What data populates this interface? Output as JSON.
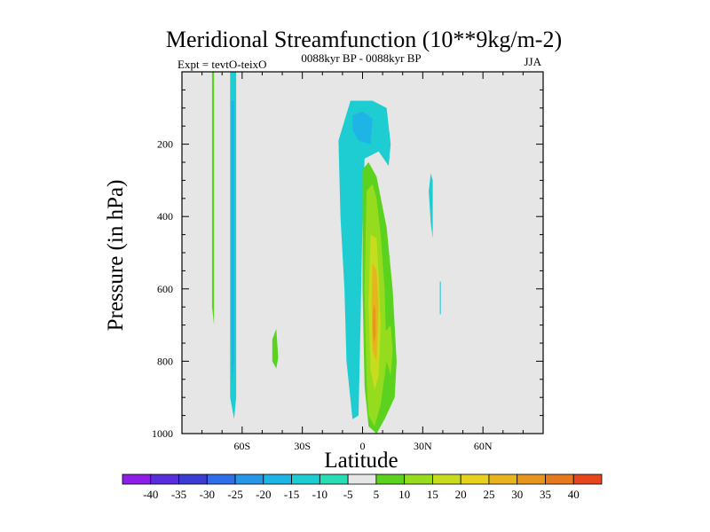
{
  "chart_data": {
    "type": "heatmap",
    "title": "Meridional Streamfunction (10**9kg/m-2)",
    "subtitle_left": "Expt = tevtO-teixO",
    "subtitle_center": "0088kyr BP - 0088kyr BP",
    "subtitle_right": "JJA",
    "xlabel": "Latitude",
    "ylabel": "Pressure (in hPa)",
    "xlim": [
      -90,
      90
    ],
    "ylim": [
      1000,
      0
    ],
    "x_ticks": [
      -60,
      -30,
      0,
      30,
      60
    ],
    "x_tick_labels": [
      "60S",
      "30S",
      "0",
      "30N",
      "60N"
    ],
    "y_ticks": [
      200,
      400,
      600,
      800,
      1000
    ],
    "y_tick_labels": [
      "200",
      "400",
      "600",
      "800",
      "1000"
    ],
    "background_color": "#e6e6e6",
    "colorbar": {
      "labels": [
        "-40",
        "-35",
        "-30",
        "-25",
        "-20",
        "-15",
        "-10",
        "-5",
        "5",
        "10",
        "15",
        "20",
        "25",
        "30",
        "35",
        "40"
      ],
      "colors": [
        "#8c1ee6",
        "#5a2ddc",
        "#3c3cd2",
        "#2f6ee6",
        "#2896e6",
        "#1eb4e6",
        "#1ecdd2",
        "#28dcb4",
        "#e6e6e6",
        "#5ad21e",
        "#96dc1e",
        "#c8dc1e",
        "#e6d21e",
        "#e6b41e",
        "#e6961e",
        "#e6781e",
        "#e6461e"
      ]
    },
    "contours": [
      {
        "value": -10,
        "color": "#1ecdd2",
        "points": [
          [
            -66,
            0
          ],
          [
            -63,
            0
          ],
          [
            -63,
            300
          ],
          [
            -63,
            700
          ],
          [
            -63,
            900
          ],
          [
            -64,
            960
          ],
          [
            -66,
            900
          ],
          [
            -66,
            300
          ]
        ]
      },
      {
        "value": -15,
        "color": "#1eb4e6",
        "points": [
          [
            -65.5,
            80
          ],
          [
            -64,
            80
          ],
          [
            -64,
            400
          ],
          [
            -64,
            800
          ],
          [
            -65,
            860
          ],
          [
            -65.5,
            700
          ]
        ]
      },
      {
        "value": -10,
        "color": "#1ecdd2",
        "points": [
          [
            -12,
            190
          ],
          [
            -6,
            80
          ],
          [
            5,
            80
          ],
          [
            12,
            100
          ],
          [
            14,
            200
          ],
          [
            13,
            260
          ],
          [
            8,
            220
          ],
          [
            1,
            240
          ],
          [
            0,
            400
          ],
          [
            -1,
            700
          ],
          [
            -2,
            950
          ],
          [
            -5,
            960
          ],
          [
            -8,
            800
          ],
          [
            -9,
            600
          ],
          [
            -11,
            400
          ]
        ]
      },
      {
        "value": -15,
        "color": "#1eb4e6",
        "points": [
          [
            -5,
            120
          ],
          [
            0,
            110
          ],
          [
            5,
            130
          ],
          [
            4,
            200
          ],
          [
            -2,
            190
          ],
          [
            -5,
            160
          ]
        ]
      },
      {
        "value": -10,
        "color": "#1ecdd2",
        "points": [
          [
            33,
            330
          ],
          [
            34,
            420
          ],
          [
            35,
            460
          ],
          [
            35,
            300
          ],
          [
            34,
            280
          ]
        ]
      },
      {
        "value": -10,
        "color": "#1ecdd2",
        "points": [
          [
            38.5,
            580
          ],
          [
            39,
            580
          ],
          [
            39,
            670
          ],
          [
            38.5,
            670
          ]
        ]
      },
      {
        "value": 5,
        "color": "#5ad21e",
        "points": [
          [
            -75,
            0
          ],
          [
            -74,
            0
          ],
          [
            -74,
            300
          ],
          [
            -74,
            700
          ],
          [
            -75,
            650
          ]
        ]
      },
      {
        "value": 5,
        "color": "#5ad21e",
        "points": [
          [
            -45,
            740
          ],
          [
            -43,
            710
          ],
          [
            -42,
            790
          ],
          [
            -43,
            820
          ],
          [
            -45,
            800
          ]
        ]
      },
      {
        "value": 5,
        "color": "#5ad21e",
        "points": [
          [
            0,
            270
          ],
          [
            3,
            250
          ],
          [
            7,
            290
          ],
          [
            12,
            430
          ],
          [
            15,
            600
          ],
          [
            17,
            800
          ],
          [
            16,
            900
          ],
          [
            11,
            960
          ],
          [
            7,
            1000
          ],
          [
            3,
            980
          ],
          [
            1,
            870
          ],
          [
            0,
            600
          ],
          [
            0,
            400
          ]
        ]
      },
      {
        "value": 10,
        "color": "#96dc1e",
        "points": [
          [
            2,
            330
          ],
          [
            5,
            310
          ],
          [
            7,
            350
          ],
          [
            9,
            450
          ],
          [
            11,
            600
          ],
          [
            12,
            800
          ],
          [
            9,
            920
          ],
          [
            6,
            980
          ],
          [
            3,
            950
          ],
          [
            2,
            850
          ],
          [
            1,
            600
          ]
        ]
      },
      {
        "value": 15,
        "color": "#c8dc1e",
        "points": [
          [
            4,
            450
          ],
          [
            7,
            460
          ],
          [
            8,
            560
          ],
          [
            9,
            700
          ],
          [
            8,
            840
          ],
          [
            6,
            880
          ],
          [
            4,
            820
          ],
          [
            3,
            640
          ]
        ]
      },
      {
        "value": 20,
        "color": "#e6b41e",
        "points": [
          [
            5,
            530
          ],
          [
            7,
            550
          ],
          [
            8,
            650
          ],
          [
            7,
            800
          ],
          [
            5,
            770
          ],
          [
            4.5,
            640
          ]
        ]
      },
      {
        "value": 25,
        "color": "#e6961e",
        "points": [
          [
            5.5,
            640
          ],
          [
            6.5,
            660
          ],
          [
            6.5,
            730
          ],
          [
            5.5,
            750
          ],
          [
            5,
            700
          ]
        ]
      },
      {
        "value": 10,
        "color": "#96dc1e",
        "points": [
          [
            11,
            720
          ],
          [
            14,
            700
          ],
          [
            15,
            770
          ],
          [
            14,
            840
          ],
          [
            12,
            800
          ]
        ]
      }
    ]
  }
}
